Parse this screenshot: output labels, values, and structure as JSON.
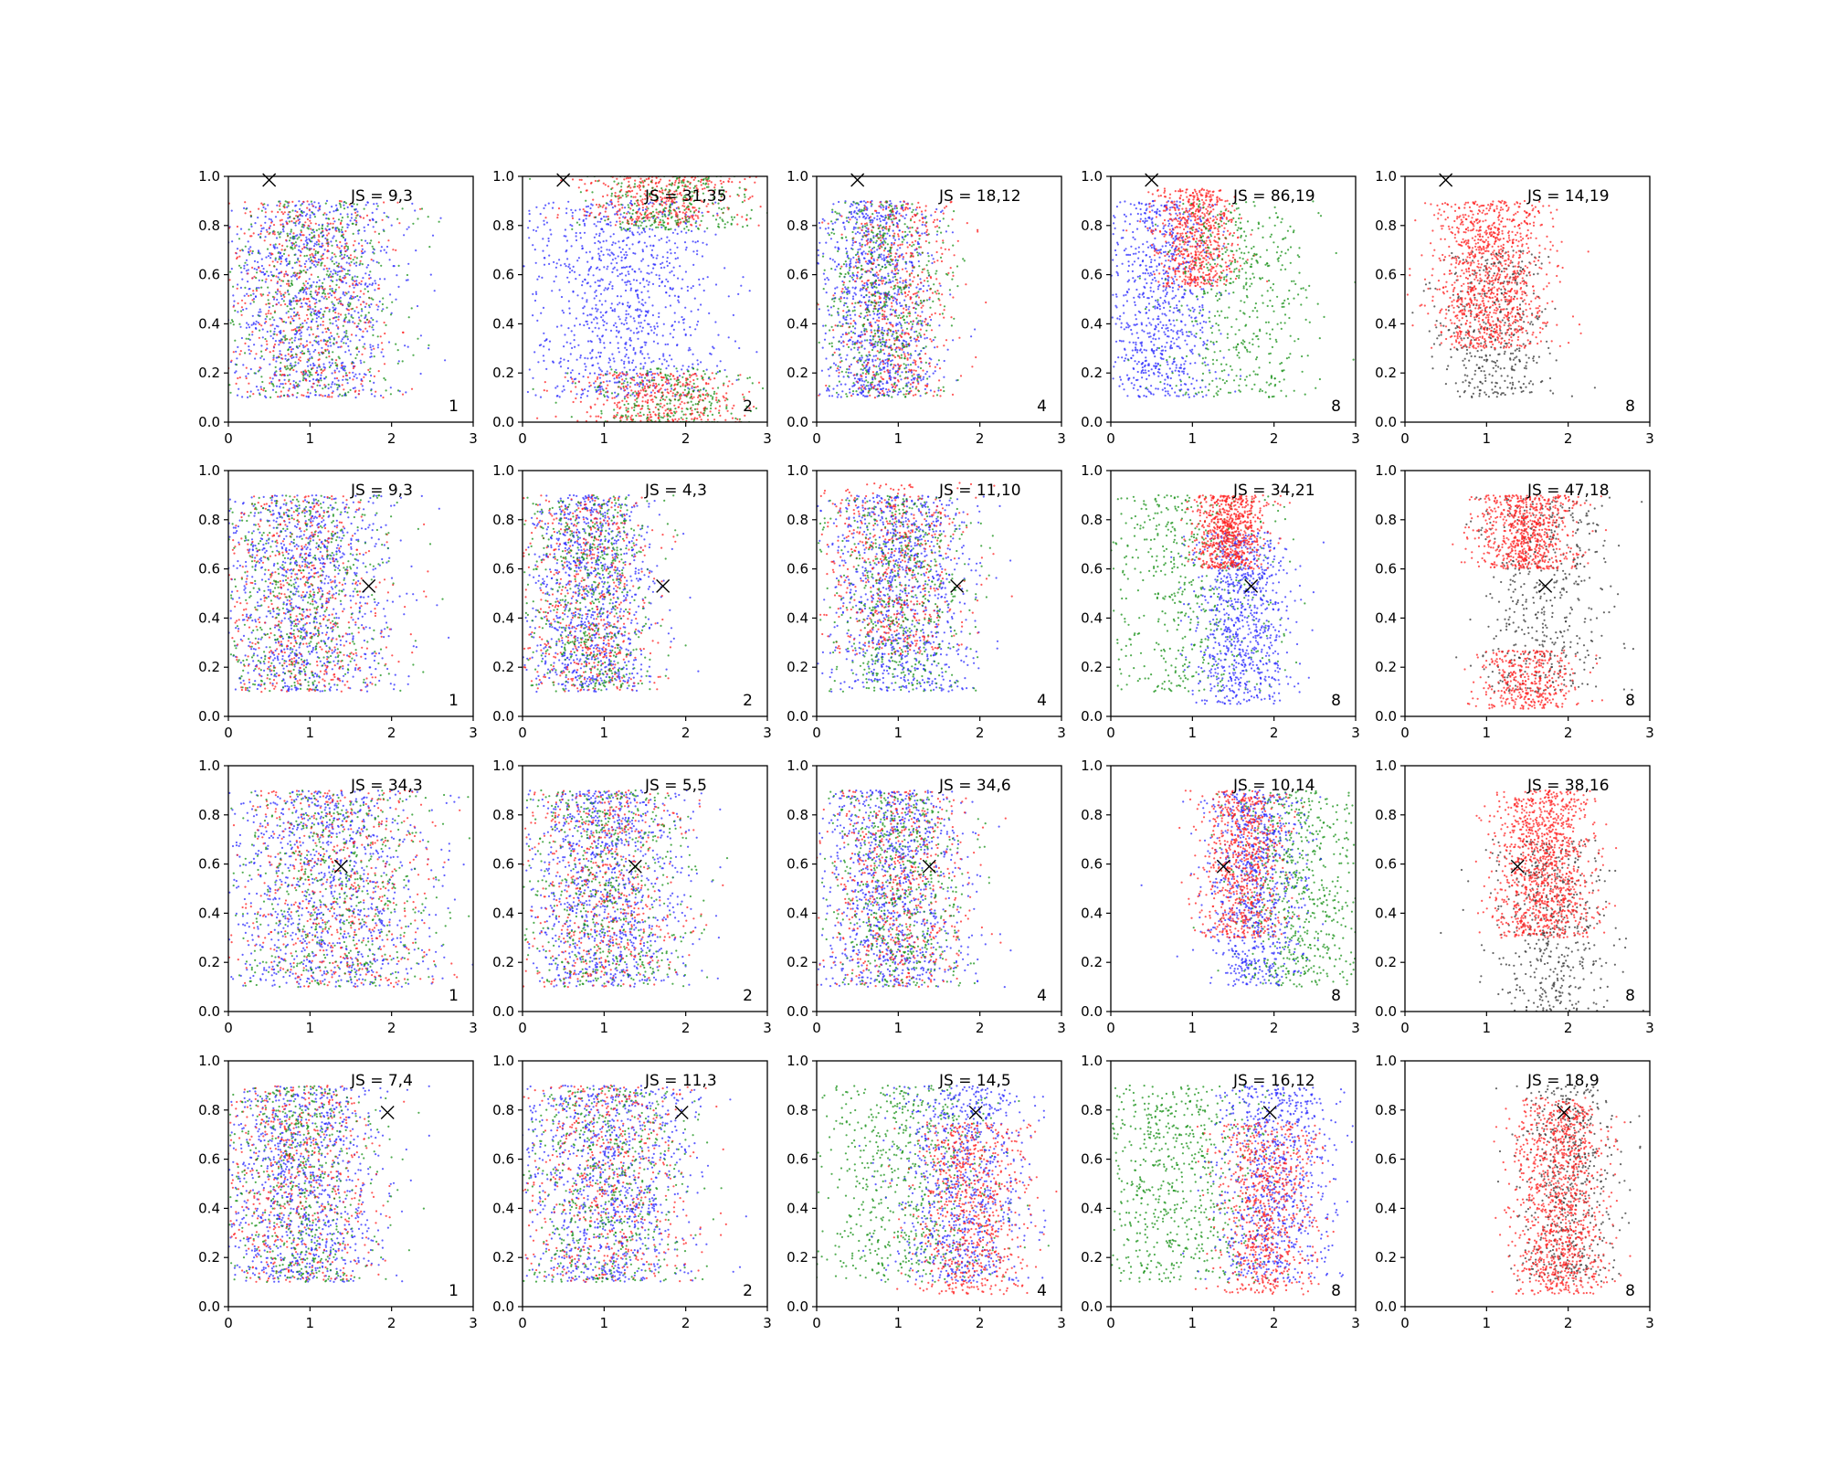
{
  "colors": {
    "blue": "#2b2bff",
    "red": "#ff2020",
    "green": "#159015",
    "black": "#333333",
    "marker": "#000000"
  },
  "chart_data": {
    "type": "scatter",
    "grid": "4x5 subplots",
    "xlim": [
      0,
      3
    ],
    "ylim": [
      0,
      1
    ],
    "x_ticks": [
      "0",
      "1",
      "2",
      "3"
    ],
    "y_ticks": [
      "0.0",
      "0.2",
      "0.4",
      "0.6",
      "0.8",
      "1.0"
    ],
    "legend": "none",
    "panels": [
      {
        "row": 0,
        "col": 0,
        "label": "JS = 9,3",
        "k": "1",
        "marker": {
          "x": 0.5,
          "y": 0.985
        },
        "clouds": [
          {
            "color": "blue",
            "cx": 1.0,
            "sx": 0.55,
            "cy": 0.5,
            "sy": 0.4,
            "n": 1800
          },
          {
            "color": "red",
            "cx": 1.0,
            "sx": 0.55,
            "cy": 0.5,
            "sy": 0.4,
            "n": 1000
          },
          {
            "color": "green",
            "cx": 1.0,
            "sx": 0.55,
            "cy": 0.5,
            "sy": 0.4,
            "n": 1000
          }
        ]
      },
      {
        "row": 0,
        "col": 1,
        "label": "JS = 31,35",
        "k": "2",
        "marker": {
          "x": 0.5,
          "y": 0.985
        },
        "clouds": [
          {
            "color": "blue",
            "cx": 1.2,
            "sx": 0.6,
            "cy": 0.5,
            "sy": 0.4,
            "n": 1800
          },
          {
            "color": "red",
            "cx": 1.7,
            "sx": 0.5,
            "cy": 0.9,
            "sy": 0.1,
            "n": 700
          },
          {
            "color": "red",
            "cx": 1.7,
            "sx": 0.5,
            "cy": 0.1,
            "sy": 0.1,
            "n": 700
          },
          {
            "color": "green",
            "cx": 1.8,
            "sx": 0.5,
            "cy": 0.9,
            "sy": 0.12,
            "n": 500
          },
          {
            "color": "green",
            "cx": 1.8,
            "sx": 0.5,
            "cy": 0.1,
            "sy": 0.12,
            "n": 500
          }
        ]
      },
      {
        "row": 0,
        "col": 2,
        "label": "JS = 18,12",
        "k": "4",
        "marker": {
          "x": 0.5,
          "y": 0.985
        },
        "clouds": [
          {
            "color": "blue",
            "cx": 0.75,
            "sx": 0.35,
            "cy": 0.5,
            "sy": 0.4,
            "n": 1800
          },
          {
            "color": "red",
            "cx": 1.0,
            "sx": 0.35,
            "cy": 0.5,
            "sy": 0.4,
            "n": 1000
          },
          {
            "color": "green",
            "cx": 0.8,
            "sx": 0.4,
            "cy": 0.5,
            "sy": 0.4,
            "n": 1000
          }
        ]
      },
      {
        "row": 0,
        "col": 3,
        "label": "JS = 86,19",
        "k": "8",
        "marker": {
          "x": 0.5,
          "y": 0.985
        },
        "clouds": [
          {
            "color": "blue",
            "cx": 0.6,
            "sx": 0.35,
            "cy": 0.5,
            "sy": 0.4,
            "n": 1500
          },
          {
            "color": "red",
            "cx": 1.05,
            "sx": 0.25,
            "cy": 0.75,
            "sy": 0.2,
            "n": 1200
          },
          {
            "color": "green",
            "cx": 1.6,
            "sx": 0.45,
            "cy": 0.5,
            "sy": 0.4,
            "n": 900
          }
        ]
      },
      {
        "row": 0,
        "col": 4,
        "label": "JS = 14,19",
        "k": "8",
        "marker": {
          "x": 0.5,
          "y": 0.985
        },
        "clouds": [
          {
            "color": "black",
            "cx": 1.1,
            "sx": 0.35,
            "cy": 0.4,
            "sy": 0.3,
            "n": 800
          },
          {
            "color": "red",
            "cx": 1.05,
            "sx": 0.35,
            "cy": 0.6,
            "sy": 0.3,
            "n": 2000
          }
        ]
      },
      {
        "row": 1,
        "col": 0,
        "label": "JS = 9,3",
        "k": "1",
        "marker": {
          "x": 1.72,
          "y": 0.53
        },
        "clouds": [
          {
            "color": "blue",
            "cx": 0.9,
            "sx": 0.55,
            "cy": 0.5,
            "sy": 0.4,
            "n": 1800
          },
          {
            "color": "red",
            "cx": 0.9,
            "sx": 0.55,
            "cy": 0.5,
            "sy": 0.4,
            "n": 1000
          },
          {
            "color": "green",
            "cx": 0.9,
            "sx": 0.55,
            "cy": 0.5,
            "sy": 0.4,
            "n": 1000
          }
        ]
      },
      {
        "row": 1,
        "col": 1,
        "label": "JS = 4,3",
        "k": "2",
        "marker": {
          "x": 1.72,
          "y": 0.53
        },
        "clouds": [
          {
            "color": "blue",
            "cx": 0.8,
            "sx": 0.4,
            "cy": 0.5,
            "sy": 0.4,
            "n": 1800
          },
          {
            "color": "red",
            "cx": 0.8,
            "sx": 0.4,
            "cy": 0.5,
            "sy": 0.4,
            "n": 1000
          },
          {
            "color": "green",
            "cx": 0.8,
            "sx": 0.4,
            "cy": 0.5,
            "sy": 0.4,
            "n": 1000
          }
        ]
      },
      {
        "row": 1,
        "col": 2,
        "label": "JS = 11,10",
        "k": "4",
        "marker": {
          "x": 1.72,
          "y": 0.53
        },
        "clouds": [
          {
            "color": "blue",
            "cx": 1.0,
            "sx": 0.45,
            "cy": 0.5,
            "sy": 0.4,
            "n": 1800
          },
          {
            "color": "red",
            "cx": 1.0,
            "sx": 0.45,
            "cy": 0.6,
            "sy": 0.35,
            "n": 1000
          },
          {
            "color": "green",
            "cx": 1.0,
            "sx": 0.45,
            "cy": 0.5,
            "sy": 0.4,
            "n": 1000
          }
        ]
      },
      {
        "row": 1,
        "col": 3,
        "label": "JS = 34,21",
        "k": "8",
        "marker": {
          "x": 1.72,
          "y": 0.53
        },
        "clouds": [
          {
            "color": "green",
            "cx": 0.9,
            "sx": 0.55,
            "cy": 0.5,
            "sy": 0.4,
            "n": 1000
          },
          {
            "color": "blue",
            "cx": 1.6,
            "sx": 0.3,
            "cy": 0.4,
            "sy": 0.35,
            "n": 1500
          },
          {
            "color": "red",
            "cx": 1.45,
            "sx": 0.22,
            "cy": 0.75,
            "sy": 0.15,
            "n": 1300
          }
        ]
      },
      {
        "row": 1,
        "col": 4,
        "label": "JS = 47,18",
        "k": "8",
        "marker": {
          "x": 1.72,
          "y": 0.53
        },
        "clouds": [
          {
            "color": "black",
            "cx": 1.7,
            "sx": 0.4,
            "cy": 0.5,
            "sy": 0.4,
            "n": 900
          },
          {
            "color": "red",
            "cx": 1.5,
            "sx": 0.3,
            "cy": 0.75,
            "sy": 0.15,
            "n": 1300
          },
          {
            "color": "red",
            "cx": 1.5,
            "sx": 0.3,
            "cy": 0.15,
            "sy": 0.12,
            "n": 700
          }
        ]
      },
      {
        "row": 2,
        "col": 0,
        "label": "JS = 34,3",
        "k": "1",
        "marker": {
          "x": 1.38,
          "y": 0.59
        },
        "clouds": [
          {
            "color": "blue",
            "cx": 1.2,
            "sx": 0.65,
            "cy": 0.5,
            "sy": 0.4,
            "n": 1800
          },
          {
            "color": "red",
            "cx": 1.3,
            "sx": 0.65,
            "cy": 0.5,
            "sy": 0.4,
            "n": 1000
          },
          {
            "color": "green",
            "cx": 1.3,
            "sx": 0.65,
            "cy": 0.5,
            "sy": 0.4,
            "n": 1000
          }
        ]
      },
      {
        "row": 2,
        "col": 1,
        "label": "JS = 5,5",
        "k": "2",
        "marker": {
          "x": 1.38,
          "y": 0.59
        },
        "clouds": [
          {
            "color": "blue",
            "cx": 1.0,
            "sx": 0.5,
            "cy": 0.5,
            "sy": 0.4,
            "n": 1800
          },
          {
            "color": "red",
            "cx": 1.0,
            "sx": 0.5,
            "cy": 0.5,
            "sy": 0.4,
            "n": 1000
          },
          {
            "color": "green",
            "cx": 1.0,
            "sx": 0.5,
            "cy": 0.5,
            "sy": 0.4,
            "n": 1000
          }
        ]
      },
      {
        "row": 2,
        "col": 2,
        "label": "JS = 34,6",
        "k": "4",
        "marker": {
          "x": 1.38,
          "y": 0.59
        },
        "clouds": [
          {
            "color": "blue",
            "cx": 0.9,
            "sx": 0.45,
            "cy": 0.5,
            "sy": 0.4,
            "n": 1800
          },
          {
            "color": "red",
            "cx": 1.0,
            "sx": 0.45,
            "cy": 0.5,
            "sy": 0.4,
            "n": 1000
          },
          {
            "color": "green",
            "cx": 1.0,
            "sx": 0.45,
            "cy": 0.5,
            "sy": 0.4,
            "n": 1000
          }
        ]
      },
      {
        "row": 2,
        "col": 3,
        "label": "JS = 10,14",
        "k": "8",
        "marker": {
          "x": 1.38,
          "y": 0.59
        },
        "clouds": [
          {
            "color": "green",
            "cx": 2.3,
            "sx": 0.4,
            "cy": 0.5,
            "sy": 0.4,
            "n": 1200
          },
          {
            "color": "blue",
            "cx": 1.75,
            "sx": 0.3,
            "cy": 0.5,
            "sy": 0.4,
            "n": 1500
          },
          {
            "color": "red",
            "cx": 1.6,
            "sx": 0.25,
            "cy": 0.6,
            "sy": 0.3,
            "n": 1300
          }
        ]
      },
      {
        "row": 2,
        "col": 4,
        "label": "JS = 38,16",
        "k": "8",
        "marker": {
          "x": 1.38,
          "y": 0.59
        },
        "clouds": [
          {
            "color": "black",
            "cx": 1.8,
            "sx": 0.35,
            "cy": 0.35,
            "sy": 0.35,
            "n": 900
          },
          {
            "color": "red",
            "cx": 1.7,
            "sx": 0.3,
            "cy": 0.6,
            "sy": 0.3,
            "n": 2000
          }
        ]
      },
      {
        "row": 3,
        "col": 0,
        "label": "JS = 7,4",
        "k": "1",
        "marker": {
          "x": 1.95,
          "y": 0.79
        },
        "clouds": [
          {
            "color": "blue",
            "cx": 0.85,
            "sx": 0.5,
            "cy": 0.5,
            "sy": 0.4,
            "n": 1800
          },
          {
            "color": "red",
            "cx": 0.85,
            "sx": 0.5,
            "cy": 0.5,
            "sy": 0.4,
            "n": 1000
          },
          {
            "color": "green",
            "cx": 0.85,
            "sx": 0.5,
            "cy": 0.5,
            "sy": 0.4,
            "n": 1000
          }
        ]
      },
      {
        "row": 3,
        "col": 1,
        "label": "JS = 11,3",
        "k": "2",
        "marker": {
          "x": 1.95,
          "y": 0.79
        },
        "clouds": [
          {
            "color": "blue",
            "cx": 1.0,
            "sx": 0.55,
            "cy": 0.5,
            "sy": 0.4,
            "n": 1800
          },
          {
            "color": "red",
            "cx": 1.0,
            "sx": 0.55,
            "cy": 0.5,
            "sy": 0.4,
            "n": 1000
          },
          {
            "color": "green",
            "cx": 1.0,
            "sx": 0.55,
            "cy": 0.5,
            "sy": 0.4,
            "n": 1000
          }
        ]
      },
      {
        "row": 3,
        "col": 2,
        "label": "JS = 14,5",
        "k": "4",
        "marker": {
          "x": 1.95,
          "y": 0.79
        },
        "clouds": [
          {
            "color": "green",
            "cx": 1.1,
            "sx": 0.55,
            "cy": 0.5,
            "sy": 0.4,
            "n": 1200
          },
          {
            "color": "blue",
            "cx": 1.8,
            "sx": 0.4,
            "cy": 0.5,
            "sy": 0.4,
            "n": 1500
          },
          {
            "color": "red",
            "cx": 1.9,
            "sx": 0.35,
            "cy": 0.4,
            "sy": 0.35,
            "n": 1300
          }
        ]
      },
      {
        "row": 3,
        "col": 3,
        "label": "JS = 16,12",
        "k": "8",
        "marker": {
          "x": 1.95,
          "y": 0.79
        },
        "clouds": [
          {
            "color": "green",
            "cx": 0.8,
            "sx": 0.55,
            "cy": 0.5,
            "sy": 0.4,
            "n": 1300
          },
          {
            "color": "blue",
            "cx": 2.0,
            "sx": 0.35,
            "cy": 0.5,
            "sy": 0.4,
            "n": 1500
          },
          {
            "color": "red",
            "cx": 1.9,
            "sx": 0.3,
            "cy": 0.4,
            "sy": 0.35,
            "n": 1300
          }
        ]
      },
      {
        "row": 3,
        "col": 4,
        "label": "JS = 18,9",
        "k": "8",
        "marker": {
          "x": 1.95,
          "y": 0.79
        },
        "clouds": [
          {
            "color": "black",
            "cx": 2.0,
            "sx": 0.3,
            "cy": 0.5,
            "sy": 0.4,
            "n": 1000
          },
          {
            "color": "red",
            "cx": 1.9,
            "sx": 0.28,
            "cy": 0.45,
            "sy": 0.4,
            "n": 2000
          }
        ]
      }
    ]
  }
}
